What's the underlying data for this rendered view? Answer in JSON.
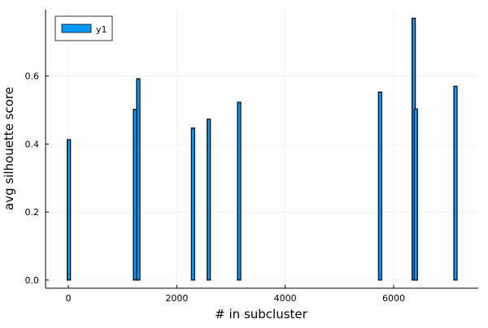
{
  "chart_data": {
    "type": "bar",
    "title": "",
    "xlabel": "# in subcluster",
    "ylabel": "avg silhouette score",
    "xlim": [
      -420,
      7560
    ],
    "ylim": [
      -0.024,
      0.795
    ],
    "xticks": [
      0,
      2000,
      4000,
      6000
    ],
    "xtick_labels": [
      "0",
      "2000",
      "4000",
      "6000"
    ],
    "yticks": [
      0.0,
      0.2,
      0.4,
      0.6
    ],
    "ytick_labels": [
      "0.0",
      "0.2",
      "0.4",
      "0.6"
    ],
    "grid": true,
    "legend": {
      "position": "top-left",
      "entries": [
        "y1"
      ]
    },
    "series": [
      {
        "name": "y1",
        "color": "#009AFA",
        "edge_color": "#000000",
        "points": [
          {
            "x": 10,
            "y": 0.413
          },
          {
            "x": 1230,
            "y": 0.502
          },
          {
            "x": 1290,
            "y": 0.592
          },
          {
            "x": 2300,
            "y": 0.447
          },
          {
            "x": 2590,
            "y": 0.473
          },
          {
            "x": 3150,
            "y": 0.523
          },
          {
            "x": 5750,
            "y": 0.553
          },
          {
            "x": 6370,
            "y": 0.77
          },
          {
            "x": 6410,
            "y": 0.503
          },
          {
            "x": 7140,
            "y": 0.57
          }
        ]
      }
    ]
  }
}
